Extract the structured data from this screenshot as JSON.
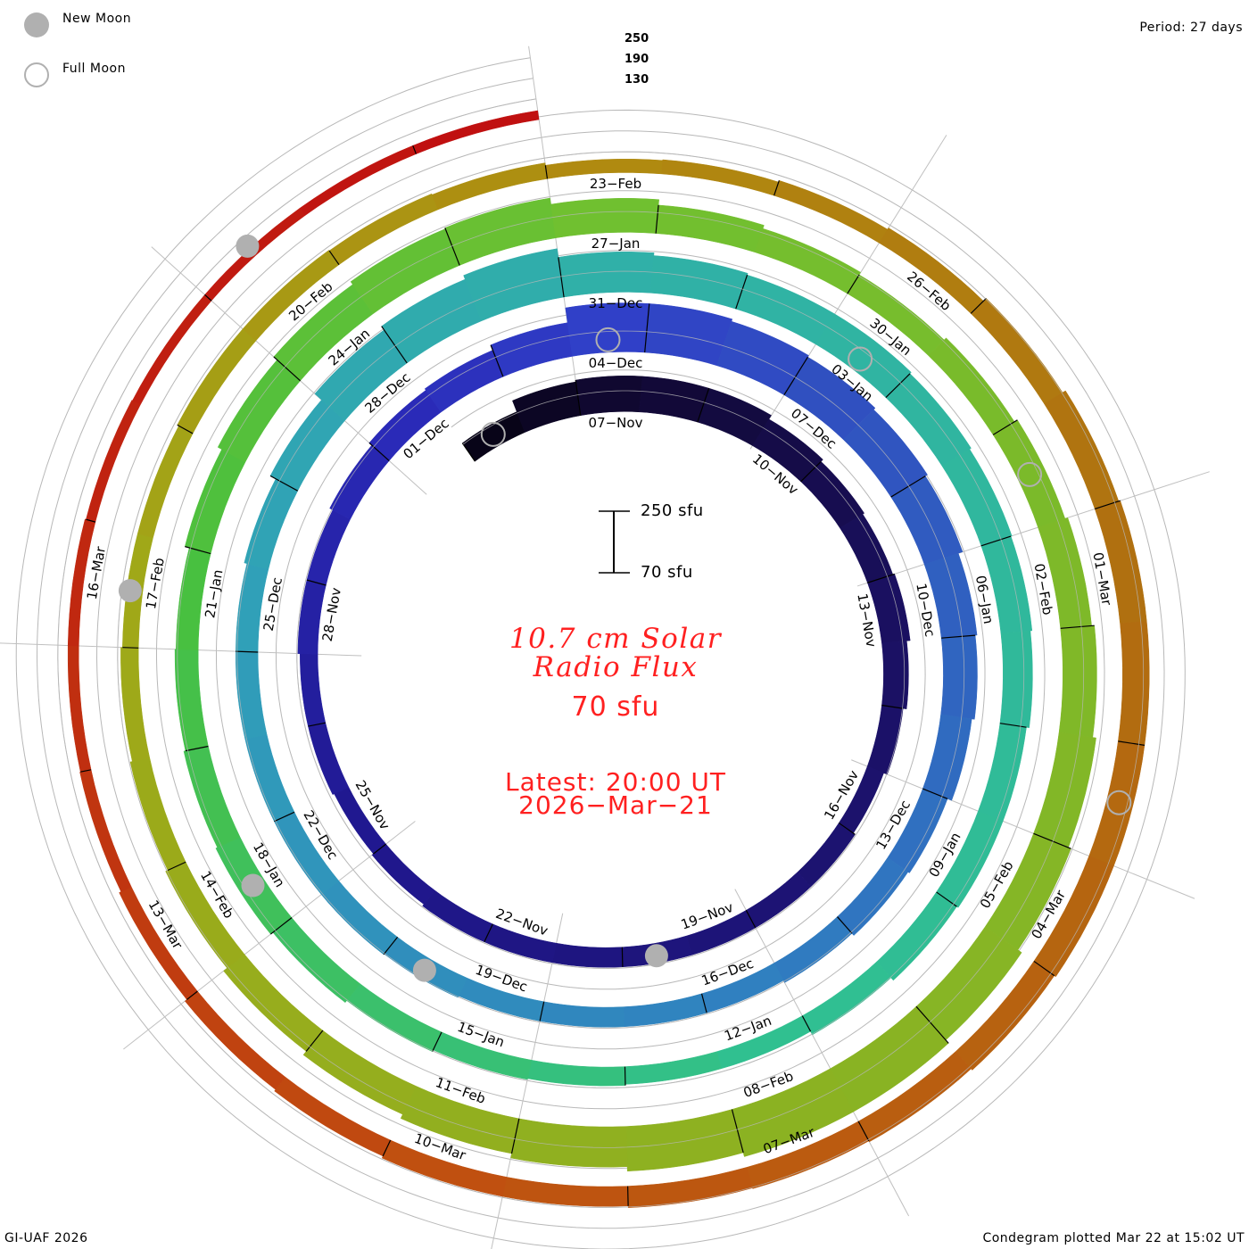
{
  "legend": {
    "new_moon": "New Moon",
    "full_moon": "Full Moon",
    "new_moon_color": "#b0b0b0",
    "full_moon_color": "#b0b0b0"
  },
  "period": "Period: 27 days",
  "scale": {
    "top": "250 sfu",
    "bottom": "70 sfu"
  },
  "title_line1": "10.7 cm Solar",
  "title_line2": "Radio Flux",
  "current_value": "70 sfu",
  "latest_line1": "Latest: 20:00 UT",
  "latest_line2": "2026−Mar−21",
  "footer_left": "GI-UAF 2026",
  "footer_right": "Condegram plotted Mar 22 at 15:02 UT",
  "chart_data": {
    "type": "bar",
    "layout": "spiral condegram",
    "title": "10.7 cm Solar Radio Flux",
    "unit": "sfu",
    "period_days": 27,
    "start_date": "2025-11-05",
    "end_date": "2026-03-21",
    "reference_levels": [
      "250",
      "190",
      "130"
    ],
    "scale_range": [
      70,
      250
    ],
    "values": [
      134,
      168,
      173,
      173,
      173,
      160,
      152,
      147,
      152,
      142,
      132,
      121,
      127,
      127,
      127,
      127,
      127,
      127,
      127,
      121,
      116,
      121,
      121,
      127,
      127,
      137,
      147,
      152,
      168,
      211,
      211,
      204,
      199,
      193,
      186,
      173,
      168,
      160,
      147,
      142,
      134,
      127,
      127,
      127,
      127,
      132,
      134,
      134,
      134,
      134,
      134,
      142,
      160,
      186,
      199,
      211,
      186,
      178,
      173,
      173,
      168,
      163,
      160,
      155,
      147,
      147,
      142,
      132,
      121,
      121,
      124,
      127,
      132,
      139,
      147,
      142,
      137,
      134,
      147,
      160,
      173,
      183,
      186,
      168,
      152,
      142,
      134,
      142,
      152,
      160,
      168,
      178,
      186,
      199,
      211,
      211,
      199,
      186,
      173,
      160,
      147,
      134,
      127,
      121,
      116,
      116,
      121,
      121,
      119,
      116,
      109,
      111,
      116,
      121,
      132,
      142,
      147,
      147,
      147,
      147,
      142,
      137,
      134,
      132,
      127,
      127,
      121,
      116,
      109,
      103,
      101,
      101,
      98,
      96,
      96,
      96,
      96
    ],
    "date_labels": [
      "07−Nov",
      "10−Nov",
      "13−Nov",
      "16−Nov",
      "19−Nov",
      "22−Nov",
      "25−Nov",
      "28−Nov",
      "01−Dec",
      "04−Dec",
      "07−Dec",
      "10−Dec",
      "13−Dec",
      "16−Dec",
      "19−Dec",
      "22−Dec",
      "25−Dec",
      "28−Dec",
      "31−Dec",
      "03−Jan",
      "06−Jan",
      "09−Jan",
      "12−Jan",
      "15−Jan",
      "18−Jan",
      "21−Jan",
      "24−Jan",
      "27−Jan",
      "30−Jan",
      "02−Feb",
      "05−Feb",
      "08−Feb",
      "11−Feb",
      "14−Feb",
      "17−Feb",
      "20−Feb",
      "23−Feb",
      "26−Feb",
      "01−Mar",
      "04−Mar",
      "07−Mar",
      "10−Mar",
      "13−Mar",
      "16−Mar"
    ],
    "new_moons": [
      "2025-11-20",
      "2025-12-20",
      "2026-01-18",
      "2026-02-17",
      "2026-03-19"
    ],
    "full_moons": [
      "2025-11-05",
      "2025-12-04",
      "2026-01-03",
      "2026-02-01",
      "2026-03-03"
    ],
    "color_stops": [
      {
        "day": 0,
        "color": "#080418"
      },
      {
        "day": 2,
        "color": "#100830"
      },
      {
        "day": 8,
        "color": "#1a1060"
      },
      {
        "day": 20,
        "color": "#201890"
      },
      {
        "day": 26,
        "color": "#2a2ab8"
      },
      {
        "day": 29,
        "color": "#3040c8"
      },
      {
        "day": 32,
        "color": "#3050c0"
      },
      {
        "day": 41,
        "color": "#3080c0"
      },
      {
        "day": 50,
        "color": "#30a0b8"
      },
      {
        "day": 56,
        "color": "#30b0a8"
      },
      {
        "day": 68,
        "color": "#30c090"
      },
      {
        "day": 77,
        "color": "#48c040"
      },
      {
        "day": 83,
        "color": "#70c030"
      },
      {
        "day": 104,
        "color": "#a0a818"
      },
      {
        "day": 110,
        "color": "#b08a10"
      },
      {
        "day": 116,
        "color": "#b07010"
      },
      {
        "day": 125,
        "color": "#c05010"
      },
      {
        "day": 131,
        "color": "#c02810"
      },
      {
        "day": 136,
        "color": "#c01010"
      }
    ]
  }
}
